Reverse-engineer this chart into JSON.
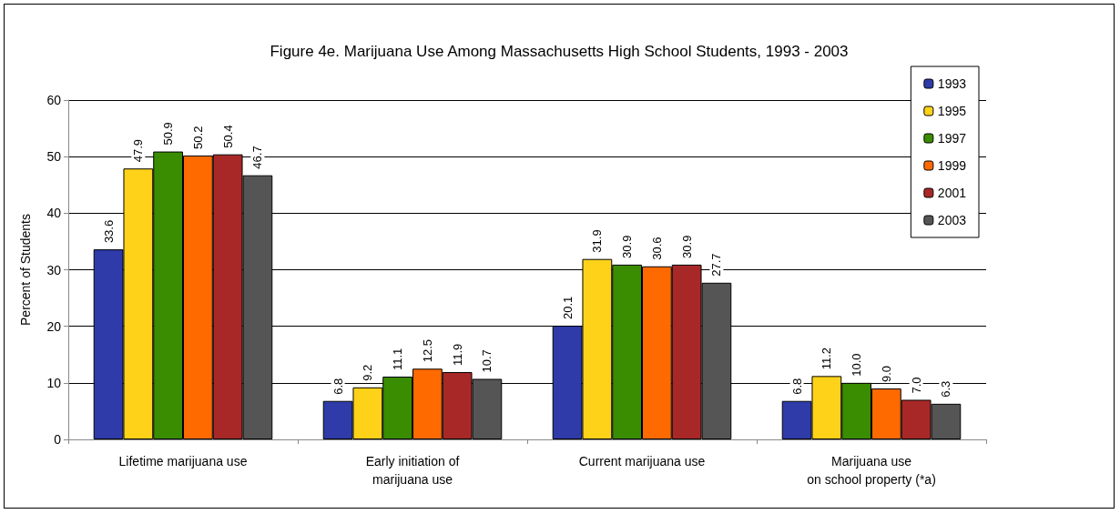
{
  "chart_data": {
    "type": "bar",
    "title": "Figure 4e. Marijuana Use Among Massachusetts High School Students, 1993 - 2003",
    "ylabel": "Percent of Students",
    "categories": [
      "Lifetime marijuana use",
      "Early initiation of\nmarijuana use",
      "Current marijuana use",
      "Marijuana use\non school property (*a)"
    ],
    "series": [
      {
        "name": "1993",
        "color": "#2e3ba8",
        "values": [
          33.6,
          6.8,
          20.1,
          6.8
        ],
        "value_labels": [
          "33.6",
          "6.8",
          "20.1",
          "6.8"
        ]
      },
      {
        "name": "1995",
        "color": "#ffd21a",
        "values": [
          47.9,
          9.2,
          31.9,
          11.2
        ],
        "value_labels": [
          "47.9",
          "9.2",
          "31.9",
          "11.2"
        ]
      },
      {
        "name": "1997",
        "color": "#3a8c00",
        "values": [
          50.9,
          11.1,
          30.9,
          10.0
        ],
        "value_labels": [
          "50.9",
          "11.1",
          "30.9",
          "10.0"
        ]
      },
      {
        "name": "1999",
        "color": "#ff6a00",
        "values": [
          50.2,
          12.5,
          30.6,
          9.0
        ],
        "value_labels": [
          "50.2",
          "12.5",
          "30.6",
          "9.0"
        ]
      },
      {
        "name": "2001",
        "color": "#a82828",
        "values": [
          50.4,
          11.9,
          30.9,
          7.0
        ],
        "value_labels": [
          "50.4",
          "11.9",
          "30.9",
          "7.0"
        ]
      },
      {
        "name": "2003",
        "color": "#555555",
        "values": [
          46.7,
          10.7,
          27.7,
          6.3
        ],
        "value_labels": [
          "46.7",
          "10.7",
          "27.7",
          "6.3"
        ]
      }
    ],
    "ylim": [
      0,
      60
    ],
    "yticks": [
      0,
      10,
      20,
      30,
      40,
      50,
      60
    ],
    "grid": "y",
    "legend": "top right"
  }
}
